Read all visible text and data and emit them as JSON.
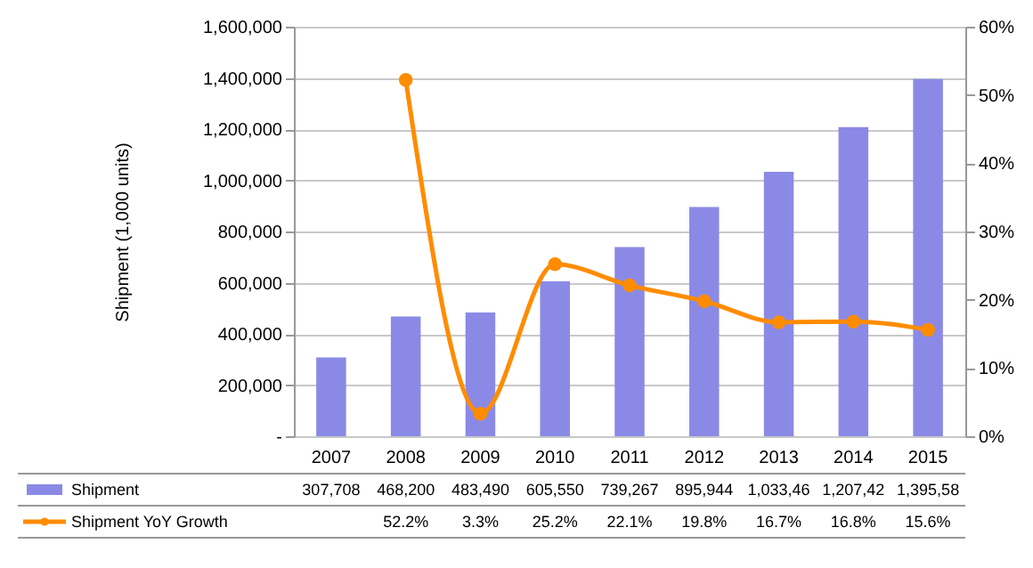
{
  "chart_data": {
    "type": "bar",
    "categories": [
      "2007",
      "2008",
      "2009",
      "2010",
      "2011",
      "2012",
      "2013",
      "2014",
      "2015"
    ],
    "ylabel": "Shipment (1,000 units)",
    "ylim": [
      0,
      1600000
    ],
    "yticks": [
      {
        "value": 0,
        "label": "-"
      },
      {
        "value": 200000,
        "label": "200,000"
      },
      {
        "value": 400000,
        "label": "400,000"
      },
      {
        "value": 600000,
        "label": "600,000"
      },
      {
        "value": 800000,
        "label": "800,000"
      },
      {
        "value": 1000000,
        "label": "1,000,000"
      },
      {
        "value": 1200000,
        "label": "1,200,000"
      },
      {
        "value": 1400000,
        "label": "1,400,000"
      },
      {
        "value": 1600000,
        "label": "1,600,000"
      }
    ],
    "y2lim": [
      0,
      60
    ],
    "y2ticks": [
      {
        "value": 0,
        "label": "0%"
      },
      {
        "value": 10,
        "label": "10%"
      },
      {
        "value": 20,
        "label": "20%"
      },
      {
        "value": 30,
        "label": "30%"
      },
      {
        "value": 40,
        "label": "40%"
      },
      {
        "value": 50,
        "label": "50%"
      },
      {
        "value": 60,
        "label": "60%"
      }
    ],
    "grid": "y",
    "legend": "bottom",
    "series": [
      {
        "name": "Shipment",
        "color": "#8a8ae6",
        "values": [
          307708,
          468200,
          483490,
          605550,
          739267,
          895944,
          1033460,
          1207420,
          1395580
        ],
        "value_labels": [
          "307,708",
          "468,200",
          "483,490",
          "605,550",
          "739,267",
          "895,944",
          "1,033,46",
          "1,207,42",
          "1,395,58"
        ]
      },
      {
        "name": "Shipment YoY Growth",
        "type": "line",
        "axis": "y2",
        "color": "#ff8c00",
        "marker": "circle",
        "values": [
          null,
          52.2,
          3.3,
          25.2,
          22.1,
          19.8,
          16.7,
          16.8,
          15.6
        ],
        "value_labels": [
          null,
          "52.2%",
          "3.3%",
          "25.2%",
          "22.1%",
          "19.8%",
          "16.7%",
          "16.8%",
          "15.6%"
        ]
      }
    ]
  }
}
